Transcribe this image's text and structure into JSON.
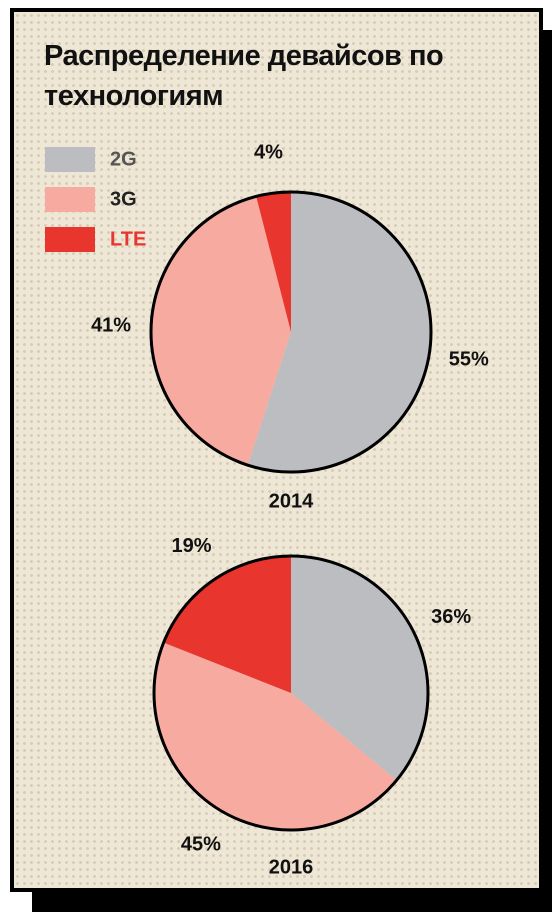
{
  "title": "Распределение девайсов по технологиям",
  "chart_data": [
    {
      "type": "pie",
      "title": "2014",
      "categories": [
        "2G",
        "3G",
        "LTE"
      ],
      "values": [
        55,
        41,
        4
      ],
      "value_labels": [
        "55%",
        "41%",
        "4%"
      ],
      "colors": [
        "#bcbdc0",
        "#f7aaa0",
        "#e8352e"
      ]
    },
    {
      "type": "pie",
      "title": "2016",
      "categories": [
        "2G",
        "3G",
        "LTE"
      ],
      "values": [
        36,
        45,
        19
      ],
      "value_labels": [
        "36%",
        "45%",
        "19%"
      ],
      "colors": [
        "#bcbdc0",
        "#f7aaa0",
        "#e8352e"
      ]
    }
  ]
}
